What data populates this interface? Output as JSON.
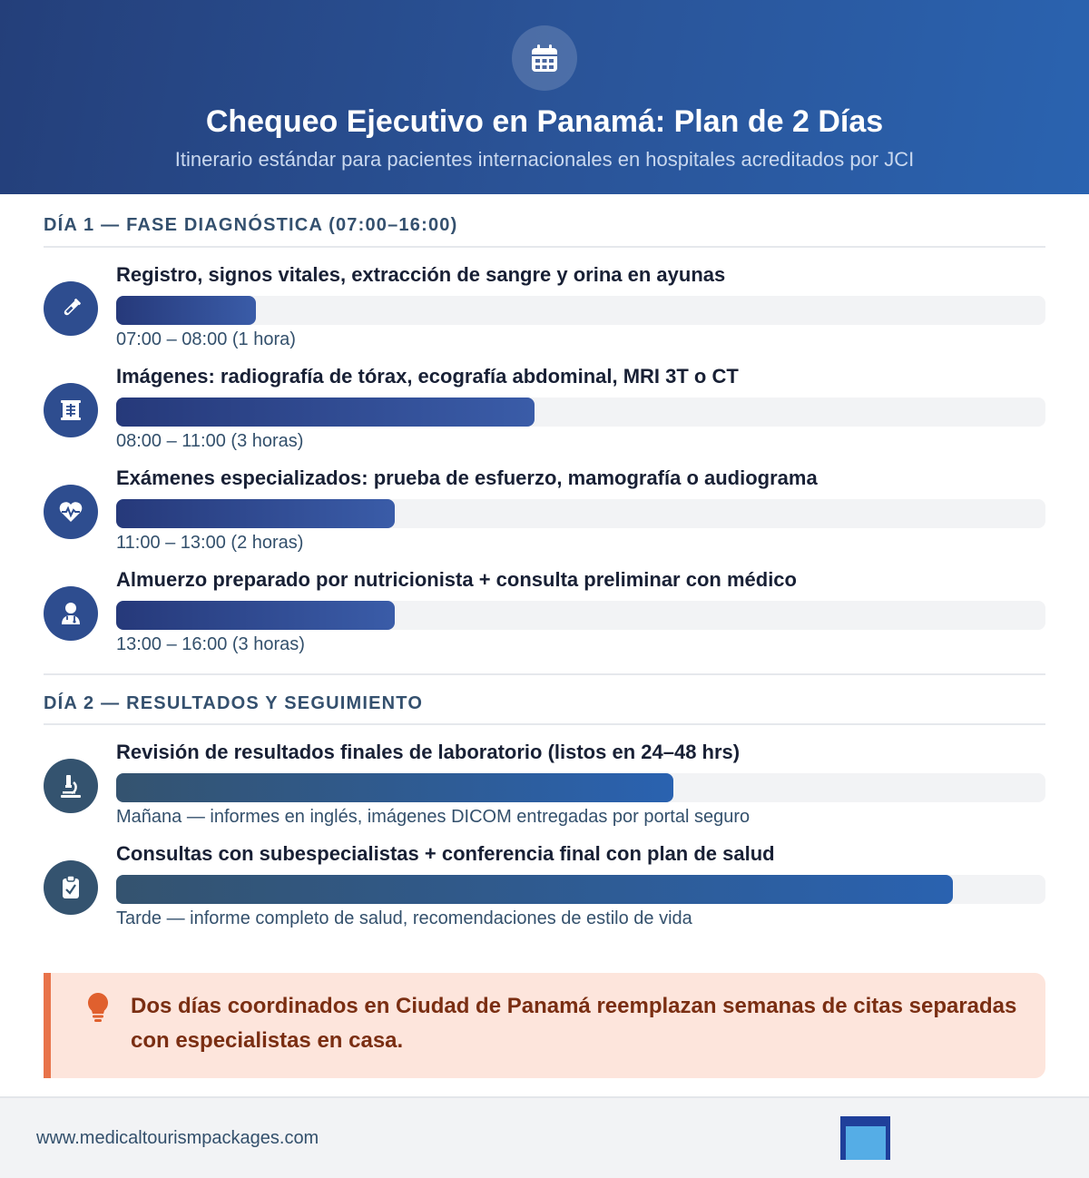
{
  "header": {
    "icon": "calendar-icon",
    "title": "Chequeo Ejecutivo en Panamá: Plan de 2 Días",
    "subtitle": "Itinerario estándar para pacientes internacionales en hospitales acreditados por JCI"
  },
  "day1": {
    "heading": "DÍA 1 — FASE DIAGNÓSTICA (07:00–16:00)",
    "items": [
      {
        "icon": "test-tube-icon",
        "title": "Registro, signos vitales, extracción de sangre y orina en ayunas",
        "detail": "07:00 – 08:00 (1 hora)",
        "level": 0.15
      },
      {
        "icon": "x-ray-icon",
        "title": "Imágenes: radiografía de tórax, ecografía abdominal, MRI 3T o CT",
        "detail": "08:00 – 11:00 (3 horas)",
        "level": 0.45
      },
      {
        "icon": "heart-pulse-icon",
        "title": "Exámenes especializados: prueba de esfuerzo, mamografía o audiograma",
        "detail": "11:00 – 13:00 (2 horas)",
        "level": 0.3
      },
      {
        "icon": "doctor-icon",
        "title": "Almuerzo preparado por nutricionista + consulta preliminar con médico",
        "detail": "13:00 – 16:00 (3 horas)",
        "level": 0.3
      }
    ]
  },
  "day2": {
    "heading": "DÍA 2 — RESULTADOS Y SEGUIMIENTO",
    "items": [
      {
        "icon": "microscope-icon",
        "title": "Revisión de resultados finales de laboratorio (listos en 24–48 hrs)",
        "detail": "Mañana — informes en inglés, imágenes DICOM entregadas por portal seguro",
        "level": 0.6
      },
      {
        "icon": "clipboard-check-icon",
        "title": "Consultas con subespecialistas + conferencia final con plan de salud",
        "detail": "Tarde — informe completo de salud, recomendaciones de estilo de vida",
        "level": 0.9
      }
    ]
  },
  "callout": {
    "icon": "lightbulb-icon",
    "text": "Dos días coordinados en Ciudad de Panamá reemplazan semanas de citas separadas con especialistas en casa."
  },
  "footer": {
    "url": "www.medicaltourismpackages.com",
    "logo": "brand-logo"
  },
  "colors": {
    "header_start": "#243f7a",
    "header_end": "#2a63b0",
    "day1_bar": "#3a5ca8",
    "day2_bar": "#2a62b0",
    "callout_bg": "#fde5dc",
    "callout_accent": "#e8734a",
    "callout_text": "#7a2e12"
  }
}
